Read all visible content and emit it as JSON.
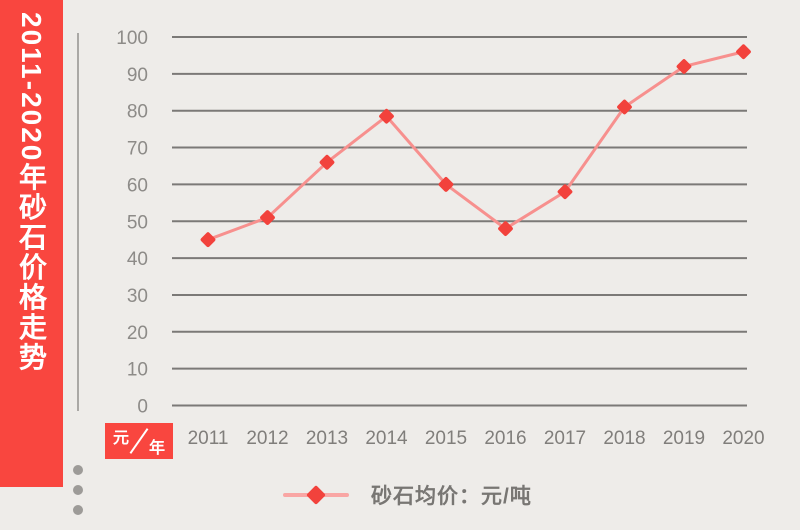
{
  "banner": {
    "title": "2011-2020年砂石价格走势",
    "bg_color": "#f9463f",
    "text_color": "#ffffff"
  },
  "unit_box": {
    "numerator": "元",
    "denominator": "年",
    "bg_color": "#f9463f"
  },
  "legend": {
    "label": "砂石均价：元/吨"
  },
  "chart_data": {
    "type": "line",
    "title": "2011-2020年砂石价格走势",
    "categories": [
      "2011",
      "2012",
      "2013",
      "2014",
      "2015",
      "2016",
      "2017",
      "2018",
      "2019",
      "2020"
    ],
    "series": [
      {
        "name": "砂石均价",
        "unit": "元/吨",
        "values": [
          45,
          51,
          66,
          78.5,
          60,
          48,
          58,
          81,
          92,
          96
        ]
      }
    ],
    "ylim": [
      0,
      100
    ],
    "yticks": [
      0,
      10,
      20,
      30,
      40,
      50,
      60,
      70,
      80,
      90,
      100
    ],
    "grid": "horizontal",
    "legend_position": "bottom",
    "colors": {
      "line": "#f7908e",
      "marker": "#f2423c",
      "grid": "#7b7977",
      "axis": "#aaa8a5",
      "tick_label": "#8d8b88",
      "background": "#eeece9",
      "accent_red": "#f9463f"
    }
  }
}
